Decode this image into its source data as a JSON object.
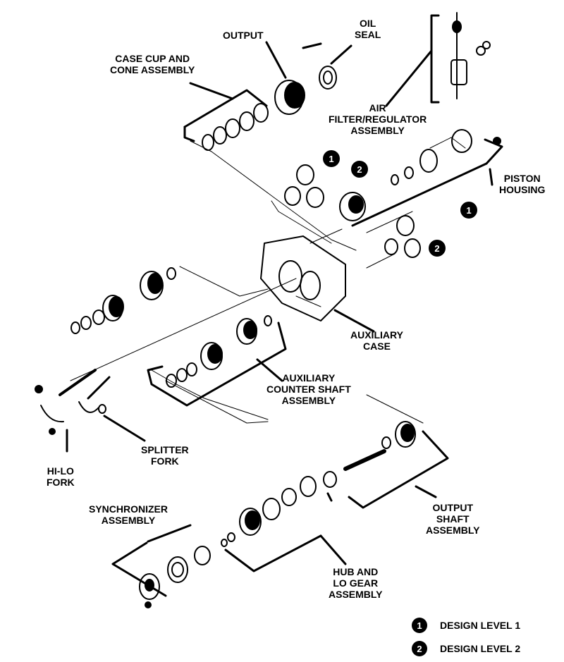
{
  "labels": {
    "output": "OUTPUT",
    "oil_seal": [
      "OIL",
      "SEAL"
    ],
    "case_cup": [
      "CASE CUP AND",
      "CONE ASSEMBLY"
    ],
    "air_filter": [
      "AIR",
      "FILTER/REGULATOR",
      "ASSEMBLY"
    ],
    "piston_housing": [
      "PISTON",
      "HOUSING"
    ],
    "auxiliary_case": [
      "AUXILIARY",
      "CASE"
    ],
    "aux_counter_shaft": [
      "AUXILIARY",
      "COUNTER SHAFT",
      "ASSEMBLY"
    ],
    "splitter_fork": [
      "SPLITTER",
      "FORK"
    ],
    "hi_lo_fork": [
      "HI-LO",
      "FORK"
    ],
    "synchronizer": [
      "SYNCHRONIZER",
      "ASSEMBLY"
    ],
    "output_shaft": [
      "OUTPUT",
      "SHAFT",
      "ASSEMBLY"
    ],
    "hub_lo_gear": [
      "HUB AND",
      "LO GEAR",
      "ASSEMBLY"
    ]
  },
  "callouts": {
    "one": "1",
    "two": "2"
  },
  "legend": [
    {
      "number": "1",
      "text": "DESIGN LEVEL 1"
    },
    {
      "number": "2",
      "text": "DESIGN LEVEL 2"
    }
  ]
}
